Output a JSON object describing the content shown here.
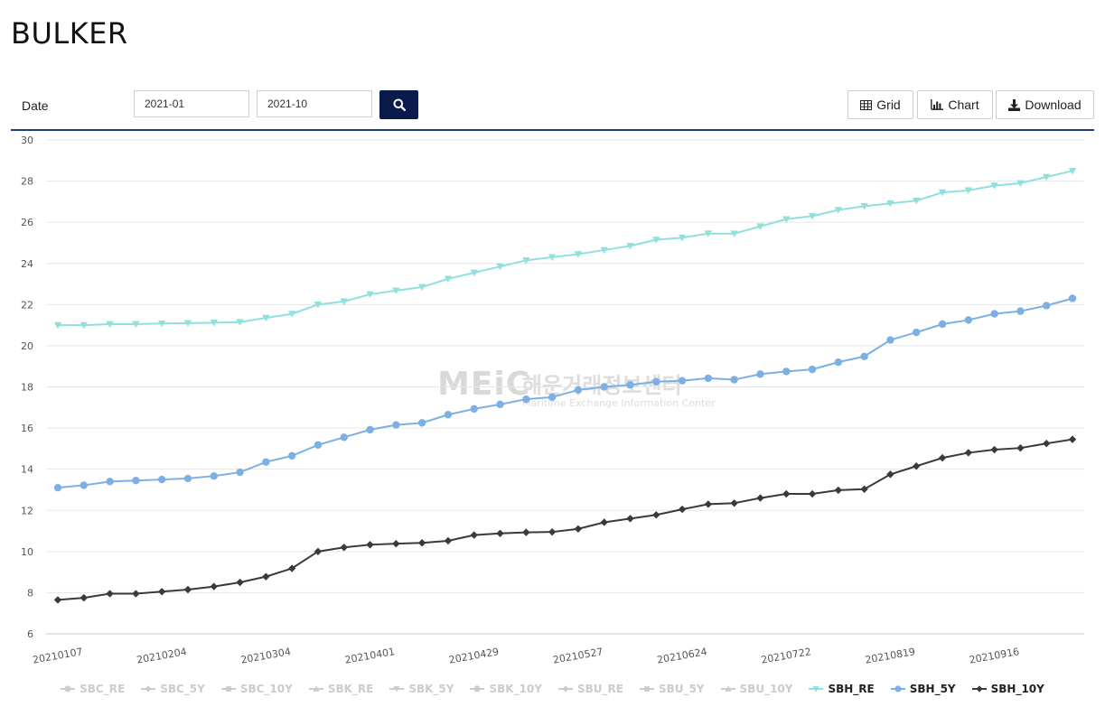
{
  "page": {
    "title": "BULKER"
  },
  "toolbar": {
    "date_label": "Date",
    "start_date": "2021-01",
    "end_date": "2021-10",
    "grid_label": "Grid",
    "chart_label": "Chart",
    "download_label": "Download"
  },
  "watermark": {
    "logo": "MEiC",
    "korean": "해운거래정보센터",
    "english": "Maritime Exchange Information Center"
  },
  "colors": {
    "accent": "#0b1a4d",
    "rule": "#1f3f7a",
    "sbh_re": "#8fe0de",
    "sbh_5y": "#7cb0e4",
    "sbh_10y": "#3a3a3a",
    "legend_inactive": "#cccccc",
    "gridline": "#e6e6e6"
  },
  "chart_data": {
    "type": "line",
    "xlabel": "",
    "ylabel": "",
    "ylim": [
      6,
      30
    ],
    "yticks": [
      6,
      8,
      10,
      12,
      14,
      16,
      18,
      20,
      22,
      24,
      26,
      28,
      30
    ],
    "grid": true,
    "legend_position": "bottom",
    "x": [
      "20210107",
      "20210114",
      "20210121",
      "20210128",
      "20210204",
      "20210211",
      "20210218",
      "20210225",
      "20210304",
      "20210311",
      "20210318",
      "20210325",
      "20210401",
      "20210408",
      "20210415",
      "20210422",
      "20210429",
      "20210506",
      "20210513",
      "20210520",
      "20210527",
      "20210603",
      "20210610",
      "20210617",
      "20210624",
      "20210701",
      "20210708",
      "20210715",
      "20210722",
      "20210729",
      "20210805",
      "20210812",
      "20210819",
      "20210826",
      "20210902",
      "20210909",
      "20210916",
      "20210923",
      "20210930",
      "20211007"
    ],
    "xtick_labels": [
      "20210107",
      "20210204",
      "20210304",
      "20210401",
      "20210429",
      "20210527",
      "20210624",
      "20210722",
      "20210819",
      "20210916"
    ],
    "legend": [
      {
        "name": "SBC_RE",
        "marker": "circle",
        "active": false
      },
      {
        "name": "SBC_5Y",
        "marker": "diamond",
        "active": false
      },
      {
        "name": "SBC_10Y",
        "marker": "square",
        "active": false
      },
      {
        "name": "SBK_RE",
        "marker": "triangle",
        "active": false
      },
      {
        "name": "SBK_5Y",
        "marker": "triangle-down",
        "active": false
      },
      {
        "name": "SBK_10Y",
        "marker": "circle",
        "active": false
      },
      {
        "name": "SBU_RE",
        "marker": "diamond",
        "active": false
      },
      {
        "name": "SBU_5Y",
        "marker": "square",
        "active": false
      },
      {
        "name": "SBU_10Y",
        "marker": "triangle",
        "active": false
      },
      {
        "name": "SBH_RE",
        "marker": "triangle-down",
        "active": true
      },
      {
        "name": "SBH_5Y",
        "marker": "circle",
        "active": true
      },
      {
        "name": "SBH_10Y",
        "marker": "diamond",
        "active": true
      }
    ],
    "series": [
      {
        "name": "SBH_RE",
        "color": "#8fe0de",
        "marker": "triangle-down",
        "values": [
          21.0,
          21.0,
          21.05,
          21.05,
          21.08,
          21.1,
          21.12,
          21.15,
          21.35,
          21.55,
          22.0,
          22.15,
          22.5,
          22.68,
          22.85,
          23.25,
          23.55,
          23.85,
          24.15,
          24.3,
          24.45,
          24.65,
          24.85,
          25.15,
          25.25,
          25.45,
          25.45,
          25.8,
          26.15,
          26.3,
          26.6,
          26.78,
          26.92,
          27.05,
          27.45,
          27.55,
          27.78,
          27.9,
          28.2,
          28.5
        ]
      },
      {
        "name": "SBH_5Y",
        "color": "#7cb0e4",
        "marker": "circle",
        "values": [
          13.1,
          13.22,
          13.4,
          13.45,
          13.5,
          13.55,
          13.67,
          13.85,
          14.35,
          14.65,
          15.18,
          15.55,
          15.92,
          16.15,
          16.25,
          16.65,
          16.93,
          17.15,
          17.4,
          17.5,
          17.85,
          18.0,
          18.1,
          18.25,
          18.3,
          18.42,
          18.35,
          18.62,
          18.75,
          18.85,
          19.2,
          19.48,
          20.28,
          20.65,
          21.05,
          21.25,
          21.55,
          21.68,
          21.95,
          22.3
        ]
      },
      {
        "name": "SBH_10Y",
        "color": "#3a3a3a",
        "marker": "diamond",
        "values": [
          7.65,
          7.75,
          7.95,
          7.95,
          8.05,
          8.15,
          8.3,
          8.5,
          8.78,
          9.18,
          10.0,
          10.2,
          10.33,
          10.38,
          10.42,
          10.52,
          10.8,
          10.88,
          10.93,
          10.95,
          11.1,
          11.42,
          11.6,
          11.78,
          12.05,
          12.3,
          12.35,
          12.6,
          12.8,
          12.8,
          12.98,
          13.03,
          13.75,
          14.15,
          14.55,
          14.8,
          14.95,
          15.03,
          15.25,
          15.45
        ]
      }
    ]
  }
}
